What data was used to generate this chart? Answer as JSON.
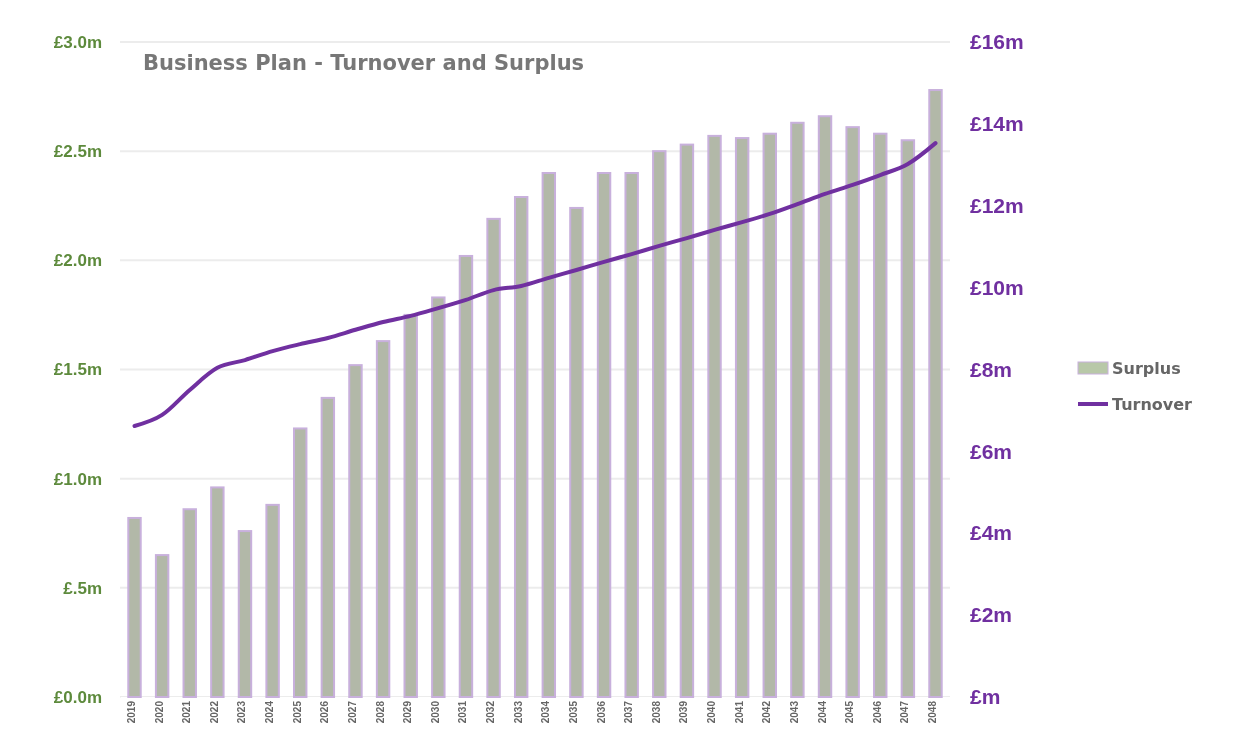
{
  "chart_data": {
    "type": "bar",
    "title": "Business Plan - Turnover and Surplus",
    "categories": [
      "2019",
      "2020",
      "2021",
      "2022",
      "2023",
      "2024",
      "2025",
      "2026",
      "2027",
      "2028",
      "2029",
      "2030",
      "2031",
      "2032",
      "2033",
      "2034",
      "2035",
      "2036",
      "2037",
      "2038",
      "2039",
      "2040",
      "2041",
      "2042",
      "2043",
      "2044",
      "2045",
      "2046",
      "2047",
      "2048"
    ],
    "series": [
      {
        "name": "Surplus",
        "color": "#b2b8a8",
        "values": [
          0.82,
          0.65,
          0.86,
          0.96,
          0.76,
          0.88,
          1.23,
          1.37,
          1.52,
          1.63,
          1.75,
          1.83,
          2.02,
          2.19,
          2.29,
          2.4,
          2.24,
          2.4,
          2.4,
          2.5,
          2.53,
          2.57,
          2.56,
          2.58,
          2.63,
          2.66,
          2.61,
          2.58,
          2.55,
          2.78
        ]
      },
      {
        "name": "Turnover",
        "type": "line",
        "axis": "y2",
        "color": "#7030a0",
        "values": [
          6.62,
          6.89,
          7.5,
          8.04,
          8.23,
          8.45,
          8.62,
          8.77,
          8.97,
          9.16,
          9.31,
          9.5,
          9.7,
          9.94,
          10.04,
          10.24,
          10.43,
          10.63,
          10.82,
          11.02,
          11.21,
          11.41,
          11.6,
          11.8,
          12.04,
          12.29,
          12.51,
          12.75,
          13.02,
          13.53
        ]
      }
    ],
    "ylim": [
      0,
      3
    ],
    "yticks": [
      {
        "value": 0,
        "label": "£0.0m"
      },
      {
        "value": 0.5,
        "label": "£.5m"
      },
      {
        "value": 1,
        "label": "£1.0m"
      },
      {
        "value": 1.5,
        "label": "£1.5m"
      },
      {
        "value": 2,
        "label": "£2.0m"
      },
      {
        "value": 2.5,
        "label": "£2.5m"
      },
      {
        "value": 3,
        "label": "£3.0m"
      }
    ],
    "y2lim": [
      0,
      16
    ],
    "y2ticks": [
      {
        "value": 0,
        "label": "£m"
      },
      {
        "value": 2,
        "label": "£2m"
      },
      {
        "value": 4,
        "label": "£4m"
      },
      {
        "value": 6,
        "label": "£6m"
      },
      {
        "value": 8,
        "label": "£8m"
      },
      {
        "value": 10,
        "label": "£10m"
      },
      {
        "value": 12,
        "label": "£12m"
      },
      {
        "value": 14,
        "label": "£14m"
      },
      {
        "value": 16,
        "label": "£16m"
      }
    ],
    "grid": "y",
    "legend": "right",
    "marker": "none",
    "line_style": "solid"
  }
}
